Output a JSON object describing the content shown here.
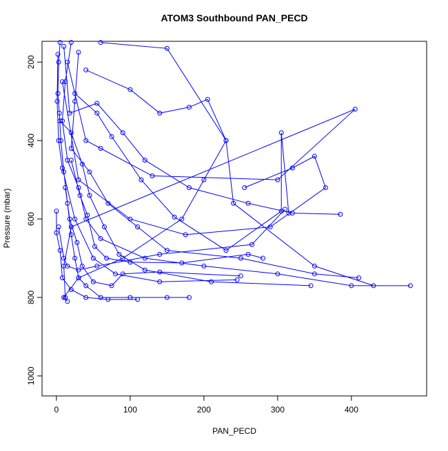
{
  "chart_data": {
    "type": "line",
    "markers": true,
    "title": "ATOM3 Southbound PAN_PECD",
    "xlabel": "PAN_PECD",
    "ylabel": "Pressure (mbar)",
    "xlim": [
      -19.5,
      502
    ],
    "ylim": [
      1051,
      147
    ],
    "y_reversed": true,
    "xticks": [
      0,
      100,
      200,
      300,
      400
    ],
    "yticks": [
      200,
      400,
      600,
      800,
      1000
    ],
    "x": [
      5,
      3,
      2,
      4,
      6,
      10,
      15,
      20,
      25,
      30,
      40,
      60,
      100,
      150,
      180,
      null,
      20,
      12,
      8,
      15,
      30,
      40,
      60,
      120,
      200,
      300,
      400,
      480,
      null,
      60,
      150,
      230,
      200,
      170,
      90,
      30,
      10,
      15,
      null,
      30,
      25,
      20,
      45,
      70,
      110,
      150,
      250,
      350,
      410,
      null,
      10,
      18,
      55,
      90,
      120,
      180,
      260,
      320,
      385,
      null,
      2,
      1,
      3,
      8,
      25,
      50,
      80,
      140,
      245,
      null,
      15,
      40,
      60,
      130,
      300,
      405,
      20,
      10,
      12,
      null,
      8,
      30,
      100,
      175,
      290,
      365,
      350,
      320,
      255,
      null,
      40,
      100,
      140,
      180,
      205,
      230,
      240,
      350,
      430,
      null,
      5,
      20,
      35,
      45,
      65,
      85,
      120,
      210,
      345,
      null,
      0,
      0,
      5,
      8,
      20,
      40,
      70,
      110,
      null,
      25,
      55,
      75,
      115,
      160,
      230,
      305,
      305,
      315,
      null,
      12,
      18,
      28,
      35,
      50,
      75,
      90,
      140,
      250,
      null,
      3,
      10,
      15,
      30,
      55,
      140,
      265,
      310,
      null,
      20,
      32,
      42,
      52,
      68,
      100,
      170,
      260,
      280
    ],
    "series": [
      {
        "color": "#0000ff",
        "values": [
          150,
          200,
          280,
          330,
          400,
          480,
          560,
          640,
          700,
          750,
          770,
          800,
          800,
          800,
          800,
          null,
          150,
          250,
          350,
          450,
          520,
          600,
          650,
          700,
          720,
          740,
          770,
          770,
          null,
          150,
          165,
          400,
          500,
          600,
          700,
          750,
          800,
          810,
          null,
          175,
          300,
          420,
          480,
          560,
          620,
          680,
          700,
          740,
          750,
          null,
          160,
          330,
          305,
          380,
          450,
          520,
          560,
          585,
          588,
          null,
          180,
          300,
          400,
          470,
          600,
          700,
          740,
          760,
          755,
          null,
          200,
          400,
          420,
          490,
          500,
          320,
          620,
          720,
          800,
          null,
          250,
          500,
          600,
          640,
          620,
          520,
          440,
          470,
          520,
          null,
          220,
          270,
          330,
          315,
          295,
          400,
          560,
          720,
          770,
          null,
          350,
          380,
          460,
          540,
          620,
          690,
          730,
          760,
          770,
          null,
          580,
          635,
          680,
          750,
          780,
          800,
          805,
          805,
          null,
          280,
          330,
          390,
          500,
          595,
          680,
          580,
          380,
          585,
          null,
          520,
          600,
          660,
          720,
          760,
          770,
          740,
          735,
          745,
          null,
          620,
          700,
          720,
          730,
          720,
          690,
          665,
          575,
          null,
          450,
          540,
          590,
          670,
          700,
          710,
          712,
          690,
          700
        ]
      }
    ]
  }
}
